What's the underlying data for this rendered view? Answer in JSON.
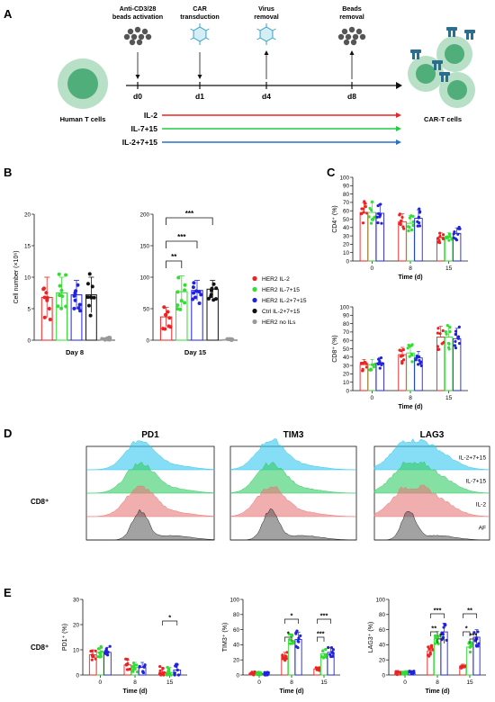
{
  "panels": {
    "A": {
      "letter": "A",
      "timeline": {
        "steps": [
          {
            "day": "d0",
            "label_line1": "Anti-CD3/28",
            "label_line2": "beads activation"
          },
          {
            "day": "d1",
            "label_line1": "CAR",
            "label_line2": "transduction"
          },
          {
            "day": "d4",
            "label_line1": "Virus",
            "label_line2": "removal"
          },
          {
            "day": "d8",
            "label_line1": "Beads",
            "label_line2": "removal"
          }
        ],
        "left_label": "Human T cells",
        "right_label": "CAR-T cells",
        "conditions": [
          {
            "name": "IL-2",
            "color": "#ee2222"
          },
          {
            "name": "IL-7+15",
            "color": "#22cc44"
          },
          {
            "name": "IL-2+7+15",
            "color": "#2a6fc9"
          }
        ]
      }
    },
    "B": {
      "letter": "B",
      "ylabel": "Cell number (×10⁶)",
      "legend": [
        {
          "name": "HER2 IL-2",
          "color": "#ee2222"
        },
        {
          "name": "HER2 IL-7+15",
          "color": "#33dd33"
        },
        {
          "name": "HER2 IL-2+7+15",
          "color": "#2222dd"
        },
        {
          "name": "Ctrl IL-2+7+15",
          "color": "#111111"
        },
        {
          "name": "HER2 no ILs",
          "color": "#999999"
        }
      ],
      "sig": [
        "**",
        "***",
        "***"
      ]
    },
    "C": {
      "letter": "C",
      "xlabel": "Time (d)"
    },
    "D": {
      "letter": "D",
      "row_label": "CD8⁺",
      "markers": [
        "PD1",
        "TIM3",
        "LAG3"
      ],
      "track_labels": [
        "IL-2+7+15",
        "IL-7+15",
        "IL-2",
        "AF"
      ],
      "track_colors": [
        "#33c8ee",
        "#33cc66",
        "#e87878",
        "#555555"
      ]
    },
    "E": {
      "letter": "E",
      "row_label": "CD8⁺",
      "xlabel": "Time (d)"
    }
  },
  "chart_data": [
    {
      "id": "B-day8",
      "type": "bar",
      "categories": [
        "HER2 IL-2",
        "HER2 IL-7+15",
        "HER2 IL-2+7+15",
        "Ctrl IL-2+7+15",
        "HER2 no ILs"
      ],
      "values": [
        6.8,
        7.5,
        7.2,
        7.2,
        0.2
      ],
      "errors": [
        3.2,
        2.5,
        2.3,
        2.8,
        0.2
      ],
      "xlabel": "Day 8",
      "ylabel": "Cell number (×10⁶)",
      "ylim": [
        0,
        20
      ],
      "yticks": [
        0,
        5,
        10,
        15,
        20
      ]
    },
    {
      "id": "B-day15",
      "type": "bar",
      "categories": [
        "HER2 IL-2",
        "HER2 IL-7+15",
        "HER2 IL-2+7+15",
        "Ctrl IL-2+7+15",
        "HER2 no ILs"
      ],
      "values": [
        37,
        77,
        79,
        81,
        1
      ],
      "errors": [
        15,
        25,
        16,
        14,
        1
      ],
      "xlabel": "Day 15",
      "ylim": [
        0,
        200
      ],
      "yticks": [
        0,
        50,
        100,
        150,
        200
      ]
    },
    {
      "id": "C-CD4",
      "type": "bar",
      "x": [
        "0",
        "8",
        "15"
      ],
      "series": [
        {
          "name": "HER2 IL-2",
          "values": [
            58,
            47,
            28
          ]
        },
        {
          "name": "HER2 IL-7+15",
          "values": [
            58,
            45,
            28
          ]
        },
        {
          "name": "HER2 IL-2+7+15",
          "values": [
            57,
            51,
            33
          ]
        }
      ],
      "ylabel": "CD4⁺ (%)",
      "xlabel": "Time (d)",
      "ylim": [
        0,
        100
      ],
      "yticks": [
        0,
        10,
        20,
        30,
        40,
        50,
        60,
        70,
        80,
        90,
        100
      ]
    },
    {
      "id": "C-CD8",
      "type": "bar",
      "x": [
        "0",
        "8",
        "15"
      ],
      "series": [
        {
          "name": "HER2 IL-2",
          "values": [
            31,
            43,
            64
          ]
        },
        {
          "name": "HER2 IL-7+15",
          "values": [
            31,
            45,
            64
          ]
        },
        {
          "name": "HER2 IL-2+7+15",
          "values": [
            33,
            39,
            62
          ]
        }
      ],
      "ylabel": "CD8⁺ (%)",
      "xlabel": "Time (d)",
      "ylim": [
        0,
        100
      ],
      "yticks": [
        0,
        10,
        20,
        30,
        40,
        50,
        60,
        70,
        80,
        90,
        100
      ]
    },
    {
      "id": "E-PD1",
      "type": "bar",
      "x": [
        "0",
        "8",
        "15"
      ],
      "series": [
        {
          "name": "HER2 IL-2",
          "values": [
            8,
            4,
            1
          ]
        },
        {
          "name": "HER2 IL-7+15",
          "values": [
            9,
            3,
            1
          ]
        },
        {
          "name": "HER2 IL-2+7+15",
          "values": [
            9,
            3,
            2
          ]
        }
      ],
      "ylabel": "PD1⁺ (%)",
      "xlabel": "Time (d)",
      "ylim": [
        0,
        30
      ],
      "yticks": [
        0,
        10,
        20,
        30
      ],
      "significance": [
        "*"
      ]
    },
    {
      "id": "E-TIM3",
      "type": "bar",
      "x": [
        "0",
        "8",
        "15"
      ],
      "series": [
        {
          "name": "HER2 IL-2",
          "values": [
            2,
            25,
            8
          ]
        },
        {
          "name": "HER2 IL-7+15",
          "values": [
            2,
            45,
            28
          ]
        },
        {
          "name": "HER2 IL-2+7+15",
          "values": [
            2,
            47,
            30
          ]
        }
      ],
      "ylabel": "TIM3⁺ (%)",
      "xlabel": "Time (d)",
      "ylim": [
        0,
        100
      ],
      "yticks": [
        0,
        20,
        40,
        60,
        80,
        100
      ],
      "significance": [
        "*",
        "*",
        "***",
        "***"
      ]
    },
    {
      "id": "E-LAG3",
      "type": "bar",
      "x": [
        "0",
        "8",
        "15"
      ],
      "series": [
        {
          "name": "HER2 IL-2",
          "values": [
            3,
            32,
            12
          ]
        },
        {
          "name": "HER2 IL-7+15",
          "values": [
            3,
            48,
            37
          ]
        },
        {
          "name": "HER2 IL-2+7+15",
          "values": [
            3,
            57,
            50
          ]
        }
      ],
      "ylabel": "LAG3⁺ (%)",
      "xlabel": "Time (d)",
      "ylim": [
        0,
        100
      ],
      "yticks": [
        0,
        20,
        40,
        60,
        80,
        100
      ],
      "significance": [
        "***",
        "**",
        "*",
        "**",
        "*",
        "***"
      ]
    }
  ]
}
